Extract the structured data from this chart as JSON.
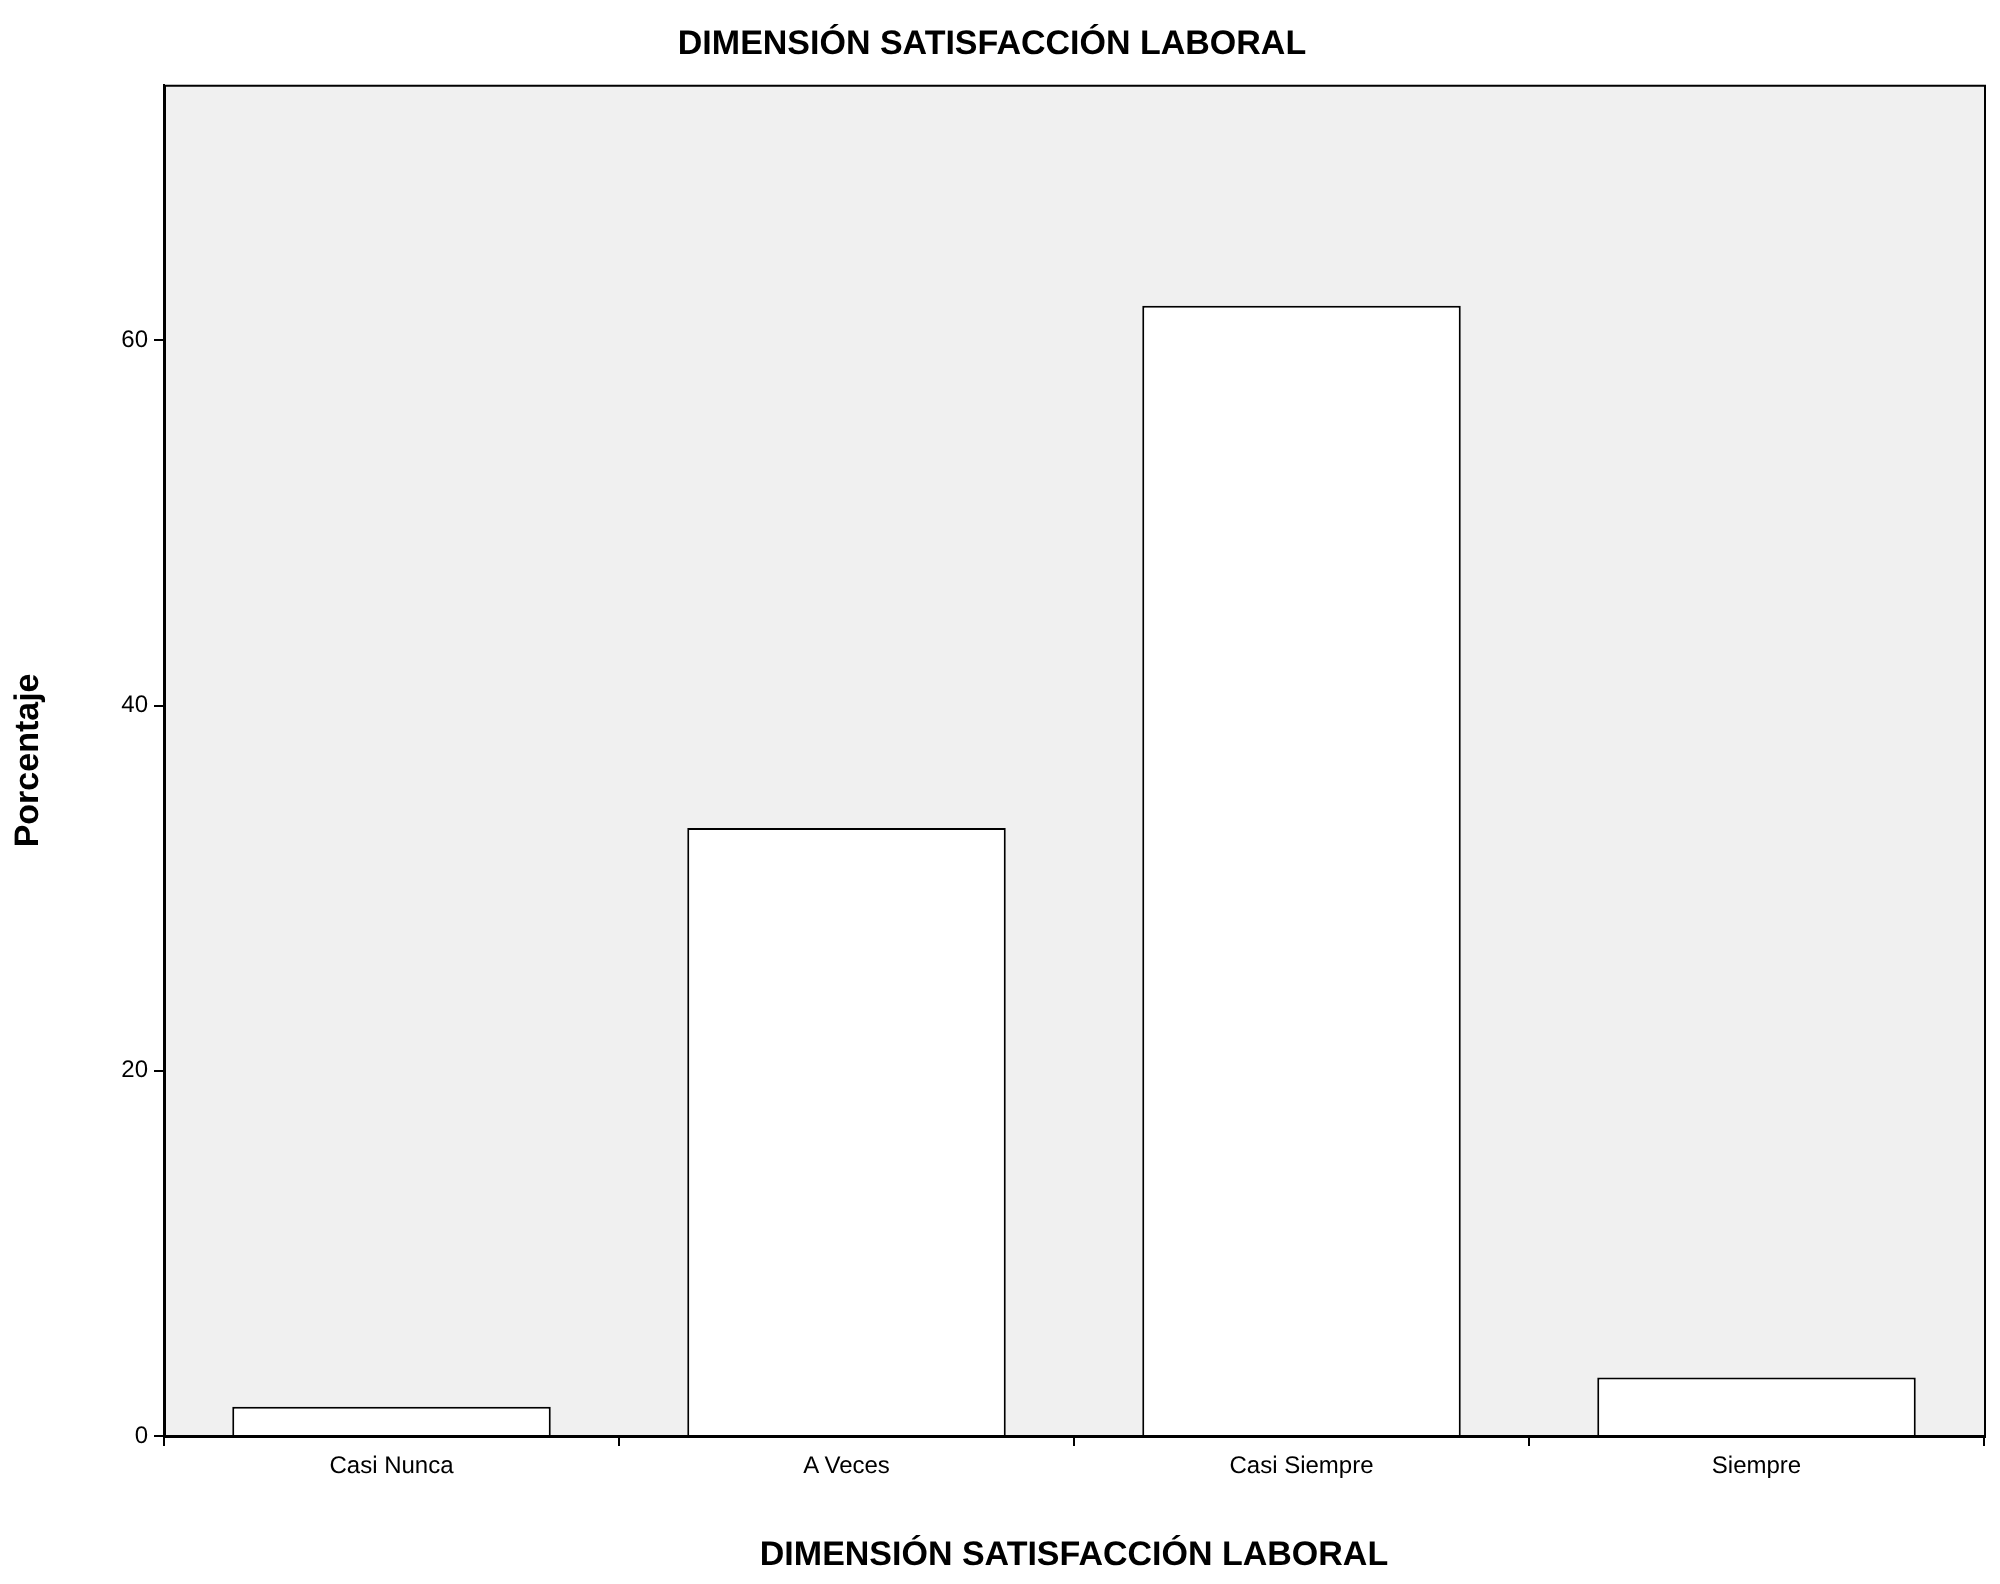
{
  "chart_data": {
    "type": "bar",
    "title": "DIMENSIÓN SATISFACCIÓN LABORAL",
    "xlabel": "DIMENSIÓN SATISFACCIÓN LABORAL",
    "ylabel": "Porcentaje",
    "categories": [
      "Casi Nunca",
      "A Veces",
      "Casi Siempre",
      "Siempre"
    ],
    "values": [
      1.6,
      33.3,
      61.9,
      3.2
    ],
    "color": "#ffffff",
    "ylim": [
      0,
      74
    ],
    "yticks": [
      0,
      20,
      40,
      60
    ],
    "grid": false,
    "legend": false
  }
}
